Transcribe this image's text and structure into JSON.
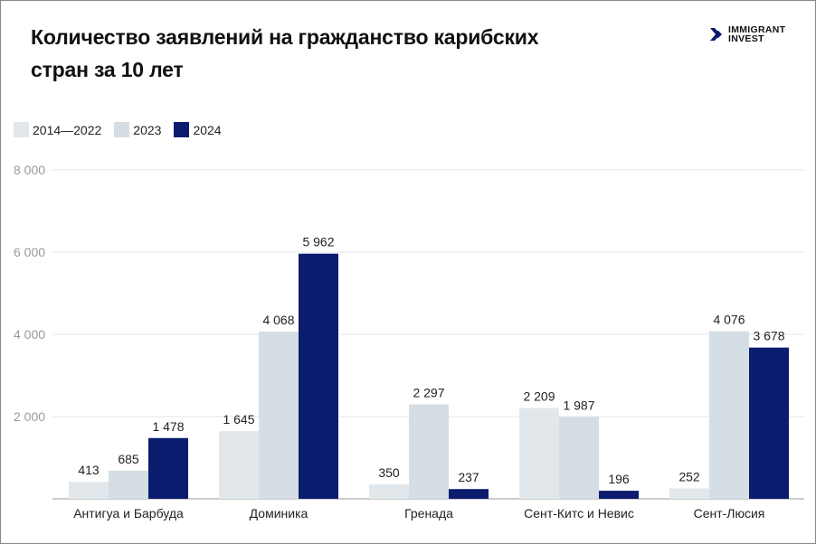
{
  "title": "Количество заявлений на гражданство карибских стран за 10 лет",
  "logo": {
    "line1": "IMMIGRANT",
    "line2": "INVEST"
  },
  "chart_data": {
    "type": "bar",
    "title": "Количество заявлений на гражданство карибских стран за 10 лет",
    "categories": [
      "Антигуа и Барбуда",
      "Доминика",
      "Гренада",
      "Сент-Китс и Невис",
      "Сент-Люсия"
    ],
    "series": [
      {
        "name": "2014—2022",
        "color": "#e2e7ec",
        "values": [
          413,
          1645,
          350,
          2209,
          252
        ],
        "labels": [
          "413",
          "1 645",
          "350",
          "2 209",
          "252"
        ]
      },
      {
        "name": "2023",
        "color": "#d4dee4",
        "values": [
          685,
          4068,
          2297,
          1987,
          4076
        ],
        "labels": [
          "685",
          "4 068",
          "2 297",
          "1 987",
          "4 076"
        ]
      },
      {
        "name": "2024",
        "color": "#0b1c6e",
        "values": [
          1478,
          5962,
          237,
          196,
          3678
        ],
        "labels": [
          "1 478",
          "5 962",
          "237",
          "196",
          "3 678"
        ]
      }
    ],
    "yticks": [
      0,
      2000,
      4000,
      6000,
      8000
    ],
    "ytick_labels": [
      "",
      "2 000",
      "4 000",
      "6 000",
      "8 000"
    ],
    "ylim": [
      0,
      8000
    ],
    "grid": true,
    "legend": "top-left",
    "xlabel": "",
    "ylabel": ""
  }
}
